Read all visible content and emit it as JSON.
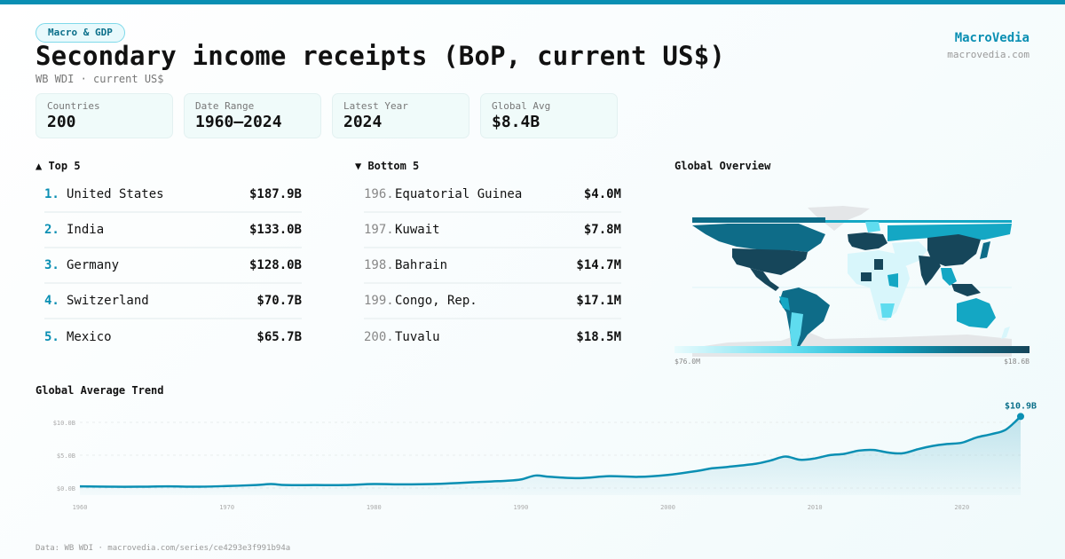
{
  "header": {
    "badge": "Macro & GDP",
    "title": "Secondary income receipts (BoP, current US$)",
    "subtitle": "WB WDI · current US$",
    "brand": "MacroVedia",
    "brand_url": "macrovedia.com"
  },
  "stats": [
    {
      "label": "Countries",
      "value": "200"
    },
    {
      "label": "Date Range",
      "value": "1960–2024"
    },
    {
      "label": "Latest Year",
      "value": "2024"
    },
    {
      "label": "Global Avg",
      "value": "$8.4B"
    }
  ],
  "top5": {
    "header": "▲ Top 5",
    "rows": [
      {
        "rank": "1.",
        "name": "United States",
        "value": "$187.9B"
      },
      {
        "rank": "2.",
        "name": "India",
        "value": "$133.0B"
      },
      {
        "rank": "3.",
        "name": "Germany",
        "value": "$128.0B"
      },
      {
        "rank": "4.",
        "name": "Switzerland",
        "value": "$70.7B"
      },
      {
        "rank": "5.",
        "name": "Mexico",
        "value": "$65.7B"
      }
    ]
  },
  "bottom5": {
    "header": "▼ Bottom 5",
    "rows": [
      {
        "rank": "196.",
        "name": "Equatorial Guinea",
        "value": "$4.0M"
      },
      {
        "rank": "197.",
        "name": "Kuwait",
        "value": "$7.8M"
      },
      {
        "rank": "198.",
        "name": "Bahrain",
        "value": "$14.7M"
      },
      {
        "rank": "199.",
        "name": "Congo, Rep.",
        "value": "$17.1M"
      },
      {
        "rank": "200.",
        "name": "Tuvalu",
        "value": "$18.5M"
      }
    ]
  },
  "map": {
    "title": "Global Overview",
    "legend_min": "$76.0M",
    "legend_max": "$18.6B",
    "colors": {
      "darkest": "#16465a",
      "dark": "#0e6c88",
      "mid": "#14a7c4",
      "light": "#5fdcef",
      "lightest": "#d8f6fb",
      "no_data": "#e4e6e8"
    }
  },
  "trend": {
    "title": "Global Average Trend",
    "last_label": "$10.9B"
  },
  "footer": "Data: WB WDI · macrovedia.com/series/ce4293e3f991b94a",
  "chart_data": {
    "type": "area",
    "title": "Global Average Trend",
    "xlabel": "",
    "ylabel": "",
    "x_ticks": [
      "1960",
      "1970",
      "1980",
      "1990",
      "2000",
      "2010",
      "2020"
    ],
    "y_ticks": [
      "$0.0B",
      "$5.0B",
      "$10.0B"
    ],
    "ylim": [
      0,
      10.9
    ],
    "xlim": [
      1960,
      2024
    ],
    "grid": true,
    "color": "#0a8fb3",
    "x": [
      1960,
      1962,
      1964,
      1966,
      1968,
      1970,
      1972,
      1973,
      1974,
      1976,
      1978,
      1980,
      1982,
      1984,
      1986,
      1988,
      1989,
      1990,
      1991,
      1992,
      1994,
      1996,
      1998,
      2000,
      2002,
      2003,
      2004,
      2006,
      2007,
      2008,
      2009,
      2010,
      2011,
      2012,
      2013,
      2014,
      2015,
      2016,
      2017,
      2018,
      2019,
      2020,
      2021,
      2022,
      2023,
      2024
    ],
    "values": [
      0.25,
      0.2,
      0.2,
      0.25,
      0.2,
      0.3,
      0.45,
      0.6,
      0.45,
      0.45,
      0.45,
      0.6,
      0.55,
      0.6,
      0.8,
      1.0,
      1.1,
      1.3,
      1.9,
      1.7,
      1.5,
      1.8,
      1.7,
      2.0,
      2.6,
      3.0,
      3.2,
      3.7,
      4.2,
      4.8,
      4.3,
      4.5,
      5.0,
      5.2,
      5.7,
      5.8,
      5.4,
      5.3,
      5.9,
      6.4,
      6.7,
      6.9,
      7.7,
      8.2,
      8.9,
      10.9
    ],
    "annotations": [
      {
        "x": 2024,
        "label": "$10.9B"
      }
    ]
  }
}
